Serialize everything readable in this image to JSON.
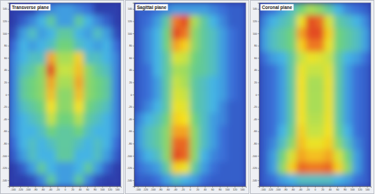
{
  "chart_data": [
    {
      "type": "heatmap",
      "title": "Transverse plane",
      "x": [
        -137.5,
        -112.5,
        -87.5,
        -62.5,
        -37.5,
        -12.5,
        12.5,
        37.5,
        62.5,
        87.5,
        112.5,
        137.5
      ],
      "y": [
        140,
        120,
        100,
        80,
        60,
        40,
        20,
        0,
        -20,
        -40,
        -60,
        -80,
        -100,
        -120,
        -140
      ],
      "cells": [
        [
          5,
          5,
          5,
          20,
          25,
          30,
          30,
          25,
          20,
          5,
          5,
          5
        ],
        [
          5,
          15,
          25,
          35,
          45,
          30,
          30,
          45,
          35,
          25,
          15,
          5
        ],
        [
          10,
          30,
          40,
          30,
          35,
          45,
          45,
          35,
          30,
          40,
          30,
          10
        ],
        [
          20,
          35,
          30,
          35,
          40,
          50,
          50,
          40,
          35,
          30,
          35,
          20
        ],
        [
          25,
          35,
          40,
          40,
          85,
          60,
          60,
          80,
          40,
          40,
          35,
          25
        ],
        [
          25,
          40,
          45,
          55,
          95,
          65,
          65,
          82,
          55,
          45,
          40,
          25
        ],
        [
          25,
          45,
          50,
          55,
          85,
          60,
          60,
          85,
          55,
          50,
          45,
          25
        ],
        [
          25,
          45,
          50,
          55,
          82,
          55,
          55,
          82,
          55,
          50,
          45,
          25
        ],
        [
          25,
          40,
          45,
          50,
          78,
          55,
          55,
          78,
          50,
          45,
          40,
          25
        ],
        [
          25,
          35,
          40,
          45,
          65,
          50,
          50,
          62,
          45,
          40,
          35,
          25
        ],
        [
          25,
          35,
          35,
          40,
          50,
          45,
          45,
          50,
          40,
          35,
          35,
          25
        ],
        [
          20,
          35,
          40,
          35,
          40,
          45,
          45,
          40,
          35,
          40,
          35,
          20
        ],
        [
          15,
          30,
          40,
          35,
          35,
          45,
          45,
          35,
          35,
          40,
          30,
          15
        ],
        [
          5,
          15,
          30,
          45,
          35,
          30,
          30,
          35,
          45,
          30,
          15,
          5
        ],
        [
          5,
          5,
          10,
          25,
          45,
          30,
          30,
          45,
          25,
          10,
          5,
          5
        ]
      ],
      "color_range": [
        0,
        100
      ],
      "xlim": [
        -150,
        150
      ],
      "ylim": [
        -150,
        150
      ],
      "xticks": [
        -140,
        -120,
        -100,
        -80,
        -60,
        -40,
        -20,
        0,
        20,
        40,
        60,
        80,
        100,
        120,
        140
      ],
      "yticks": [
        -140,
        -120,
        -100,
        -80,
        -60,
        -40,
        -20,
        0,
        20,
        40,
        60,
        80,
        100,
        120,
        140
      ]
    },
    {
      "type": "heatmap",
      "title": "Sagittal plane",
      "x": [
        -137.5,
        -112.5,
        -87.5,
        -62.5,
        -37.5,
        -12.5,
        12.5,
        37.5,
        62.5,
        87.5,
        112.5,
        137.5
      ],
      "y": [
        140,
        120,
        100,
        80,
        60,
        40,
        20,
        0,
        -20,
        -40,
        -60,
        -80,
        -100,
        -120,
        -140
      ],
      "cells": [
        [
          15,
          15,
          20,
          25,
          30,
          30,
          30,
          30,
          25,
          20,
          15,
          15
        ],
        [
          15,
          20,
          30,
          45,
          90,
          95,
          60,
          45,
          35,
          25,
          15,
          15
        ],
        [
          15,
          25,
          35,
          50,
          95,
          90,
          55,
          45,
          40,
          30,
          20,
          15
        ],
        [
          15,
          25,
          35,
          50,
          85,
          80,
          55,
          45,
          40,
          30,
          20,
          15
        ],
        [
          15,
          25,
          35,
          45,
          70,
          65,
          50,
          45,
          40,
          30,
          20,
          15
        ],
        [
          15,
          20,
          35,
          45,
          60,
          58,
          48,
          45,
          40,
          30,
          20,
          15
        ],
        [
          15,
          20,
          30,
          45,
          65,
          60,
          45,
          40,
          35,
          30,
          20,
          15
        ],
        [
          15,
          20,
          30,
          45,
          70,
          65,
          45,
          40,
          35,
          30,
          20,
          15
        ],
        [
          15,
          25,
          35,
          45,
          75,
          72,
          45,
          40,
          35,
          25,
          15,
          15
        ],
        [
          25,
          35,
          40,
          50,
          80,
          78,
          50,
          40,
          30,
          25,
          15,
          15
        ],
        [
          30,
          40,
          45,
          55,
          85,
          85,
          55,
          40,
          30,
          20,
          15,
          15
        ],
        [
          30,
          40,
          45,
          55,
          92,
          92,
          55,
          40,
          30,
          20,
          15,
          15
        ],
        [
          25,
          35,
          40,
          55,
          95,
          92,
          55,
          35,
          25,
          20,
          15,
          15
        ],
        [
          20,
          25,
          30,
          45,
          80,
          75,
          45,
          30,
          20,
          15,
          15,
          15
        ],
        [
          15,
          15,
          20,
          30,
          40,
          35,
          30,
          20,
          15,
          15,
          15,
          15
        ]
      ],
      "color_range": [
        0,
        100
      ],
      "xlim": [
        -150,
        150
      ],
      "ylim": [
        -150,
        150
      ],
      "xticks": [
        -140,
        -120,
        -100,
        -80,
        -60,
        -40,
        -20,
        0,
        20,
        40,
        60,
        80,
        100,
        120,
        140
      ],
      "yticks": [
        -140,
        -120,
        -100,
        -80,
        -60,
        -40,
        -20,
        0,
        20,
        40,
        60,
        80,
        100,
        120,
        140
      ]
    },
    {
      "type": "heatmap",
      "title": "Coronal plane",
      "x": [
        -137.5,
        -112.5,
        -87.5,
        -62.5,
        -37.5,
        -12.5,
        12.5,
        37.5,
        62.5,
        87.5,
        112.5,
        137.5
      ],
      "y": [
        140,
        120,
        100,
        80,
        60,
        40,
        20,
        0,
        -20,
        -40,
        -60,
        -80,
        -100,
        -120,
        -140
      ],
      "cells": [
        [
          15,
          20,
          30,
          40,
          50,
          60,
          55,
          45,
          35,
          25,
          20,
          15
        ],
        [
          25,
          35,
          40,
          45,
          75,
          95,
          92,
          70,
          45,
          40,
          35,
          25
        ],
        [
          30,
          40,
          45,
          50,
          85,
          95,
          95,
          80,
          50,
          45,
          40,
          30
        ],
        [
          30,
          40,
          45,
          50,
          80,
          90,
          90,
          75,
          50,
          45,
          40,
          30
        ],
        [
          20,
          30,
          35,
          45,
          65,
          75,
          72,
          65,
          45,
          35,
          30,
          20
        ],
        [
          15,
          20,
          30,
          45,
          75,
          65,
          65,
          72,
          45,
          30,
          20,
          15
        ],
        [
          15,
          20,
          30,
          45,
          78,
          60,
          60,
          75,
          45,
          30,
          20,
          15
        ],
        [
          15,
          20,
          30,
          45,
          78,
          60,
          60,
          75,
          45,
          30,
          20,
          15
        ],
        [
          15,
          20,
          30,
          45,
          78,
          60,
          60,
          75,
          45,
          30,
          20,
          15
        ],
        [
          15,
          20,
          30,
          45,
          78,
          62,
          62,
          76,
          45,
          30,
          20,
          15
        ],
        [
          15,
          20,
          35,
          48,
          80,
          65,
          65,
          78,
          48,
          35,
          20,
          15
        ],
        [
          15,
          25,
          40,
          55,
          82,
          75,
          75,
          80,
          55,
          40,
          25,
          15
        ],
        [
          15,
          30,
          50,
          70,
          85,
          82,
          82,
          85,
          70,
          50,
          30,
          15
        ],
        [
          15,
          30,
          55,
          80,
          92,
          90,
          90,
          92,
          80,
          55,
          30,
          15
        ],
        [
          15,
          20,
          30,
          35,
          40,
          40,
          40,
          40,
          35,
          30,
          20,
          15
        ]
      ],
      "color_range": [
        0,
        100
      ],
      "xlim": [
        -150,
        150
      ],
      "ylim": [
        -150,
        150
      ],
      "xticks": [
        -140,
        -120,
        -100,
        -80,
        -60,
        -40,
        -20,
        0,
        20,
        40,
        60,
        80,
        100,
        120,
        140
      ],
      "yticks": [
        -140,
        -120,
        -100,
        -80,
        -60,
        -40,
        -20,
        0,
        20,
        40,
        60,
        80,
        100,
        120,
        140
      ]
    }
  ]
}
